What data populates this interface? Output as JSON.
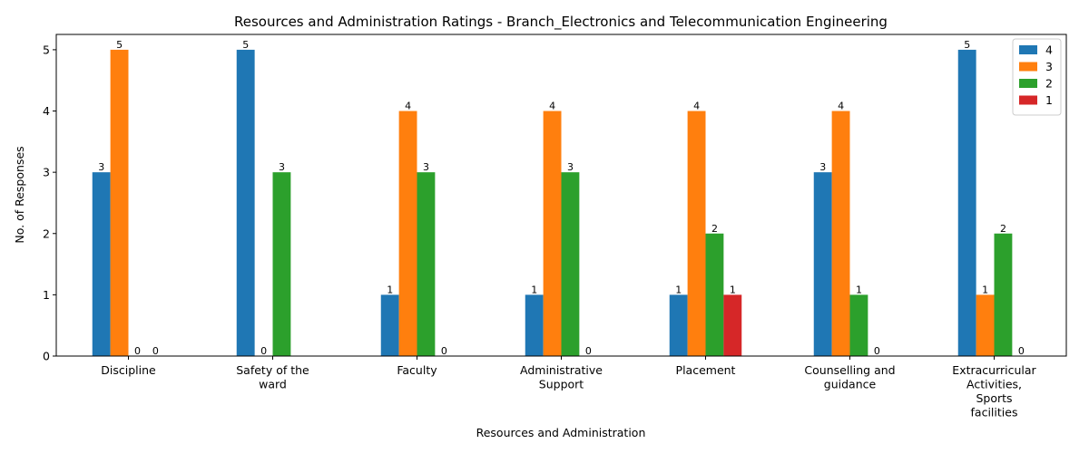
{
  "chart_data": {
    "type": "bar",
    "title": "Resources and Administration Ratings - Branch_Electronics and Telecommunication Engineering",
    "xlabel": "Resources and Administration",
    "ylabel": "No. of Responses",
    "ylim": [
      0,
      5.25
    ],
    "yticks": [
      0,
      1,
      2,
      3,
      4,
      5
    ],
    "grid": false,
    "legend_position": "top-right",
    "categories": [
      "Discipline",
      "Safety of the ward",
      "Faculty",
      "Administrative Support",
      "Placement",
      "Counselling and guidance",
      "Extracurricular Activities, Sports facilities"
    ],
    "category_label_lines": [
      [
        "Discipline"
      ],
      [
        "Safety of the",
        "ward"
      ],
      [
        "Faculty"
      ],
      [
        "Administrative",
        "Support"
      ],
      [
        "Placement"
      ],
      [
        "Counselling and",
        "guidance"
      ],
      [
        "Extracurricular",
        "Activities,",
        "Sports",
        "facilities"
      ]
    ],
    "series": [
      {
        "name": "4",
        "color": "#1f77b4",
        "values": [
          3,
          5,
          1,
          1,
          1,
          3,
          5
        ],
        "labels": [
          "3",
          "5",
          "1",
          "1",
          "1",
          "3",
          "5"
        ]
      },
      {
        "name": "3",
        "color": "#ff7f0e",
        "values": [
          5,
          0,
          4,
          4,
          4,
          4,
          1
        ],
        "labels": [
          "5",
          "0",
          "4",
          "4",
          "4",
          "4",
          "1"
        ]
      },
      {
        "name": "2",
        "color": "#2ca02c",
        "values": [
          0,
          3,
          3,
          3,
          2,
          1,
          2
        ],
        "labels": [
          "0",
          "3",
          "3",
          "3",
          "2",
          "1",
          "2"
        ]
      },
      {
        "name": "1",
        "color": "#d62728",
        "values": [
          0,
          0,
          0,
          0,
          1,
          0,
          0
        ],
        "labels": [
          "0",
          "",
          "0",
          "0",
          "1",
          "0",
          "0"
        ]
      }
    ]
  }
}
